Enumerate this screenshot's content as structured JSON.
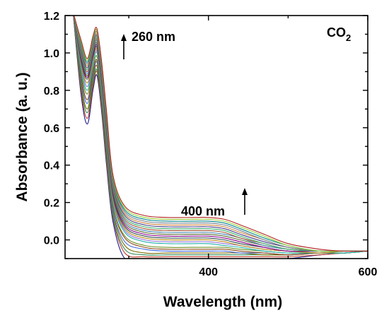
{
  "chart_data": {
    "type": "line",
    "title": "",
    "xlabel": "Wavelength (nm)",
    "ylabel": "Absorbance (a. u.)",
    "xlim": [
      220,
      600
    ],
    "ylim": [
      -0.1,
      1.2
    ],
    "x_ticks": [
      "400",
      "600"
    ],
    "y_ticks": [
      "1.2",
      "1.0",
      "0.8",
      "0.6",
      "0.4",
      "0.2",
      "0.0"
    ],
    "grid": false,
    "legend": "none",
    "gas_label": "CO",
    "gas_subscript": "2",
    "annotations": [
      {
        "text": "260 nm",
        "x": 260,
        "trend": "up"
      },
      {
        "text": "400 nm",
        "x": 400,
        "trend": "up"
      }
    ],
    "series_x": [
      230,
      240,
      248,
      255,
      260,
      266,
      272,
      280,
      295,
      320,
      350,
      380,
      400,
      420,
      440,
      470,
      500,
      540,
      570,
      600
    ],
    "series_colors": [
      "#1a1a8c",
      "#c0392b",
      "#2e8b57",
      "#7a6a00",
      "#4169e1",
      "#8b4513",
      "#6b8e23",
      "#20b2aa",
      "#9370db",
      "#b8860b",
      "#2f4f4f",
      "#8b008b",
      "#556b2f",
      "#4682b4",
      "#a0522d",
      "#3cb371",
      "#483d8b",
      "#cd853f",
      "#708090",
      "#00868b",
      "#9acd32",
      "#b22222",
      "#5f9ea0",
      "#6a5acd"
    ],
    "series": [
      {
        "values": [
          1.22,
          0.78,
          0.62,
          0.8,
          0.88,
          0.68,
          0.4,
          0.1,
          -0.1,
          -0.1,
          -0.1,
          -0.1,
          -0.1,
          -0.1,
          -0.1,
          -0.1,
          -0.1,
          -0.08,
          -0.07,
          -0.06
        ]
      },
      {
        "values": [
          1.22,
          0.8,
          0.65,
          0.82,
          0.9,
          0.7,
          0.42,
          0.12,
          -0.07,
          -0.09,
          -0.09,
          -0.09,
          -0.09,
          -0.09,
          -0.09,
          -0.09,
          -0.09,
          -0.08,
          -0.07,
          -0.06
        ]
      },
      {
        "values": [
          1.22,
          0.82,
          0.68,
          0.84,
          0.91,
          0.72,
          0.44,
          0.13,
          -0.05,
          -0.08,
          -0.08,
          -0.08,
          -0.08,
          -0.08,
          -0.08,
          -0.08,
          -0.08,
          -0.07,
          -0.07,
          -0.06
        ]
      },
      {
        "values": [
          1.22,
          0.84,
          0.7,
          0.86,
          0.93,
          0.73,
          0.46,
          0.15,
          -0.03,
          -0.07,
          -0.07,
          -0.07,
          -0.07,
          -0.07,
          -0.07,
          -0.08,
          -0.08,
          -0.07,
          -0.07,
          -0.06
        ]
      },
      {
        "values": [
          1.22,
          0.86,
          0.73,
          0.88,
          0.95,
          0.75,
          0.48,
          0.16,
          -0.01,
          -0.05,
          -0.06,
          -0.06,
          -0.06,
          -0.06,
          -0.07,
          -0.07,
          -0.08,
          -0.07,
          -0.07,
          -0.06
        ]
      },
      {
        "values": [
          1.22,
          0.88,
          0.75,
          0.9,
          0.96,
          0.77,
          0.5,
          0.18,
          0.01,
          -0.04,
          -0.05,
          -0.05,
          -0.05,
          -0.05,
          -0.06,
          -0.07,
          -0.08,
          -0.07,
          -0.07,
          -0.06
        ]
      },
      {
        "values": [
          1.22,
          0.9,
          0.78,
          0.92,
          0.98,
          0.78,
          0.52,
          0.19,
          0.02,
          -0.03,
          -0.04,
          -0.04,
          -0.04,
          -0.04,
          -0.05,
          -0.06,
          -0.07,
          -0.07,
          -0.07,
          -0.06
        ]
      },
      {
        "values": [
          1.22,
          0.92,
          0.8,
          0.94,
          1.0,
          0.8,
          0.54,
          0.21,
          0.04,
          -0.01,
          -0.02,
          -0.02,
          -0.02,
          -0.03,
          -0.04,
          -0.06,
          -0.07,
          -0.07,
          -0.07,
          -0.06
        ]
      },
      {
        "values": [
          1.22,
          0.94,
          0.82,
          0.96,
          1.01,
          0.82,
          0.56,
          0.22,
          0.05,
          0.0,
          -0.01,
          -0.01,
          -0.01,
          -0.02,
          -0.03,
          -0.05,
          -0.06,
          -0.07,
          -0.06,
          -0.06
        ]
      },
      {
        "values": [
          1.22,
          0.95,
          0.84,
          0.97,
          1.02,
          0.83,
          0.57,
          0.23,
          0.06,
          0.01,
          0.0,
          0.0,
          0.0,
          -0.01,
          -0.03,
          -0.05,
          -0.06,
          -0.07,
          -0.06,
          -0.06
        ]
      },
      {
        "values": [
          1.22,
          0.96,
          0.86,
          0.98,
          1.03,
          0.84,
          0.58,
          0.24,
          0.07,
          0.02,
          0.01,
          0.01,
          0.01,
          0.0,
          -0.02,
          -0.04,
          -0.06,
          -0.06,
          -0.06,
          -0.06
        ]
      },
      {
        "values": [
          1.22,
          0.97,
          0.87,
          0.99,
          1.04,
          0.85,
          0.59,
          0.25,
          0.08,
          0.03,
          0.02,
          0.02,
          0.02,
          0.01,
          -0.01,
          -0.04,
          -0.06,
          -0.06,
          -0.06,
          -0.06
        ]
      },
      {
        "values": [
          1.22,
          0.98,
          0.88,
          1.0,
          1.05,
          0.86,
          0.6,
          0.26,
          0.09,
          0.04,
          0.03,
          0.03,
          0.03,
          0.02,
          0.0,
          -0.03,
          -0.05,
          -0.06,
          -0.06,
          -0.06
        ]
      },
      {
        "values": [
          1.22,
          0.99,
          0.89,
          1.01,
          1.06,
          0.87,
          0.61,
          0.27,
          0.1,
          0.05,
          0.04,
          0.04,
          0.04,
          0.03,
          0.01,
          -0.03,
          -0.05,
          -0.06,
          -0.06,
          -0.06
        ]
      },
      {
        "values": [
          1.22,
          1.0,
          0.9,
          1.02,
          1.07,
          0.88,
          0.62,
          0.28,
          0.11,
          0.06,
          0.05,
          0.05,
          0.05,
          0.04,
          0.01,
          -0.02,
          -0.05,
          -0.06,
          -0.06,
          -0.06
        ]
      },
      {
        "values": [
          1.22,
          1.01,
          0.91,
          1.03,
          1.08,
          0.89,
          0.63,
          0.29,
          0.12,
          0.07,
          0.06,
          0.06,
          0.06,
          0.05,
          0.02,
          -0.02,
          -0.05,
          -0.06,
          -0.06,
          -0.06
        ]
      },
      {
        "values": [
          1.22,
          1.02,
          0.92,
          1.04,
          1.09,
          0.9,
          0.64,
          0.3,
          0.13,
          0.08,
          0.07,
          0.07,
          0.07,
          0.06,
          0.03,
          -0.01,
          -0.04,
          -0.06,
          -0.06,
          -0.06
        ]
      },
      {
        "values": [
          1.22,
          1.03,
          0.93,
          1.05,
          1.1,
          0.91,
          0.65,
          0.31,
          0.14,
          0.09,
          0.08,
          0.08,
          0.08,
          0.07,
          0.04,
          0.0,
          -0.04,
          -0.06,
          -0.06,
          -0.06
        ]
      },
      {
        "values": [
          1.22,
          1.04,
          0.94,
          1.06,
          1.11,
          0.92,
          0.66,
          0.32,
          0.15,
          0.1,
          0.09,
          0.09,
          0.09,
          0.08,
          0.05,
          0.0,
          -0.04,
          -0.06,
          -0.06,
          -0.06
        ]
      },
      {
        "values": [
          1.22,
          1.05,
          0.95,
          1.07,
          1.12,
          0.93,
          0.67,
          0.33,
          0.16,
          0.11,
          0.1,
          0.1,
          0.1,
          0.09,
          0.06,
          0.01,
          -0.03,
          -0.06,
          -0.06,
          -0.06
        ]
      },
      {
        "values": [
          1.22,
          1.06,
          0.96,
          1.08,
          1.12,
          0.94,
          0.68,
          0.34,
          0.17,
          0.12,
          0.11,
          0.11,
          0.11,
          0.1,
          0.07,
          0.02,
          -0.03,
          -0.06,
          -0.06,
          -0.06
        ]
      },
      {
        "values": [
          1.22,
          1.07,
          0.97,
          1.09,
          1.13,
          0.95,
          0.69,
          0.35,
          0.18,
          0.13,
          0.12,
          0.12,
          0.12,
          0.11,
          0.08,
          0.03,
          -0.02,
          -0.05,
          -0.06,
          -0.06
        ]
      }
    ]
  }
}
